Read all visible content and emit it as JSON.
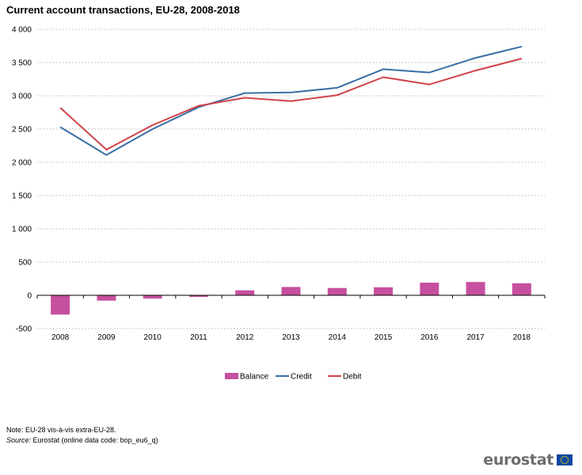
{
  "chart_data": {
    "type": "bar+line",
    "title": "Current account transactions, EU-28, 2008-2018",
    "categories": [
      "2008",
      "2009",
      "2010",
      "2011",
      "2012",
      "2013",
      "2014",
      "2015",
      "2016",
      "2017",
      "2018"
    ],
    "series": [
      {
        "name": "Balance",
        "kind": "bar",
        "color": "#c74f9f",
        "values": [
          -290,
          -80,
          -50,
          -25,
          75,
          125,
          110,
          120,
          190,
          200,
          180
        ]
      },
      {
        "name": "Credit",
        "kind": "line",
        "color": "#3a6ea5",
        "values": [
          2530,
          2110,
          2500,
          2830,
          3040,
          3050,
          3120,
          3400,
          3350,
          3570,
          3740
        ]
      },
      {
        "name": "Debit",
        "kind": "line",
        "color": "#d1414a",
        "values": [
          2820,
          2190,
          2560,
          2850,
          2970,
          2920,
          3010,
          3280,
          3170,
          3380,
          3560
        ]
      }
    ],
    "yticks": [
      -500,
      0,
      500,
      1000,
      1500,
      2000,
      2500,
      3000,
      3500,
      4000
    ],
    "ytick_labels": [
      "-500",
      "0",
      "500",
      "1 000",
      "1 500",
      "2 000",
      "2 500",
      "3 000",
      "3 500",
      "4 000"
    ],
    "ylim": [
      -500,
      4000
    ],
    "xlabel": "",
    "ylabel": "",
    "grid": true,
    "legend_position": "bottom-center"
  },
  "footnotes": {
    "note": "Note: EU-28 vis-à-vis extra-EU-28.",
    "source_label": "Source:",
    "source_text": "Eurostat (online data code: bop_eu6_q)"
  },
  "logo": {
    "text": "eurostat",
    "flag_color": "#0d47a1",
    "star_color": "#ffd600"
  }
}
